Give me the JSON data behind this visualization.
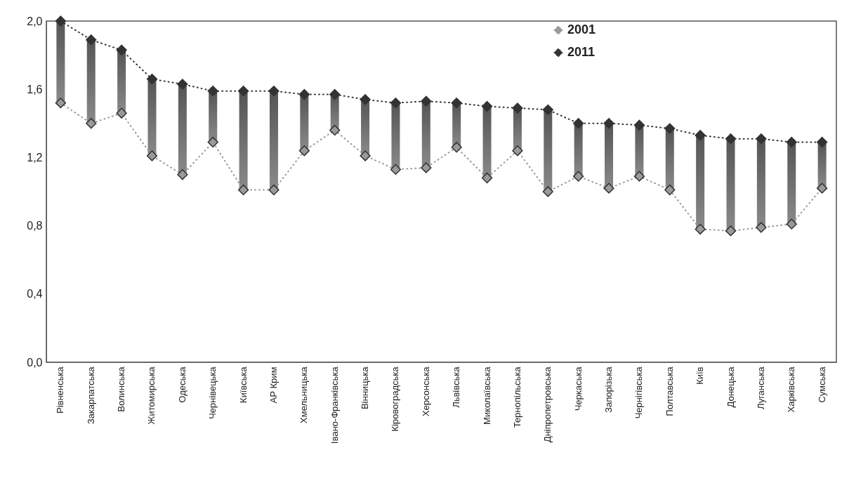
{
  "chart_data": {
    "type": "line",
    "categories": [
      "Рівненська",
      "Закарпатська",
      "Волинська",
      "Житомирська",
      "Одеська",
      "Чернівецька",
      "Київська",
      "АР Крим",
      "Хмельницька",
      "Івано-Франківська",
      "Вінницька",
      "Кіровоградська",
      "Херсонська",
      "Львівська",
      "Миколаївська",
      "Тернопільська",
      "Дніпропетровська",
      "Черкаська",
      "Запорізька",
      "Чернігівська",
      "Полтавська",
      "Київ",
      "Донецька",
      "Луганська",
      "Харківська",
      "Сумська"
    ],
    "series": [
      {
        "type": "bar",
        "color": "#8a8a8a",
        "base": [
          1.52,
          1.4,
          1.46,
          1.21,
          1.1,
          1.29,
          1.01,
          1.01,
          1.24,
          1.36,
          1.21,
          1.13,
          1.14,
          1.26,
          1.08,
          1.24,
          1.0,
          1.09,
          1.02,
          1.09,
          1.01,
          0.78,
          0.77,
          0.79,
          0.81,
          1.02
        ],
        "values": [
          0.48,
          0.49,
          0.37,
          0.45,
          0.53,
          0.3,
          0.58,
          0.58,
          0.33,
          0.21,
          0.33,
          0.39,
          0.39,
          0.26,
          0.42,
          0.25,
          0.48,
          0.31,
          0.38,
          0.3,
          0.36,
          0.55,
          0.54,
          0.52,
          0.48,
          0.27
        ]
      },
      {
        "name": "2001",
        "color": "#9a9a9a",
        "values": [
          1.52,
          1.4,
          1.46,
          1.21,
          1.1,
          1.29,
          1.01,
          1.01,
          1.24,
          1.36,
          1.21,
          1.13,
          1.14,
          1.26,
          1.08,
          1.24,
          1.0,
          1.09,
          1.02,
          1.09,
          1.01,
          0.78,
          0.77,
          0.79,
          0.81,
          1.02
        ]
      },
      {
        "name": "2011",
        "color": "#333333",
        "values": [
          2.0,
          1.89,
          1.83,
          1.66,
          1.63,
          1.59,
          1.59,
          1.59,
          1.57,
          1.57,
          1.54,
          1.52,
          1.53,
          1.52,
          1.5,
          1.49,
          1.48,
          1.4,
          1.4,
          1.39,
          1.37,
          1.33,
          1.31,
          1.31,
          1.29,
          1.29
        ]
      }
    ],
    "ylim": [
      0,
      2
    ],
    "yticks": [
      {
        "value": 0,
        "label": "0,0"
      },
      {
        "value": 0.4,
        "label": "0,4"
      },
      {
        "value": 0.8,
        "label": "0,8"
      },
      {
        "value": 1.2,
        "label": "1,2"
      },
      {
        "value": 1.6,
        "label": "1,6"
      },
      {
        "value": 2,
        "label": "2,0"
      }
    ],
    "grid": false,
    "legend": "top right",
    "marker": "diamond",
    "line_style": "dotted"
  }
}
